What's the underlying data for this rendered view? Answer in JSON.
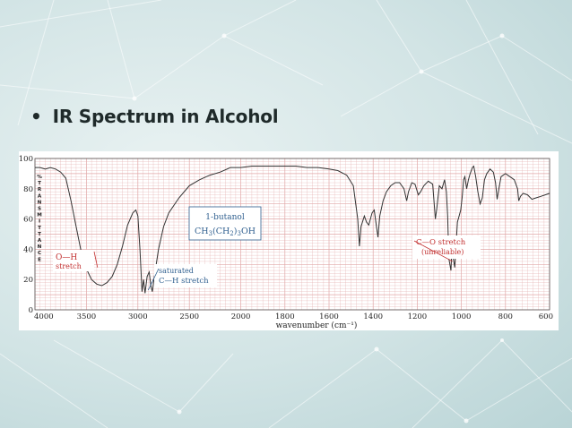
{
  "slide": {
    "bullet": "IR Spectrum in Alcohol"
  },
  "colors": {
    "background": "#cfe2e3",
    "network_lines": "#ffffff",
    "grid": "#e1a7a7",
    "trace": "#333333",
    "annotation": "#c23030",
    "label_box": "#2f5f8f"
  },
  "chart_data": {
    "type": "line",
    "title": "",
    "xlabel": "wavenumber (cm⁻¹)",
    "ylabel": "% TRANSMITTANCE",
    "ylim": [
      0,
      100
    ],
    "y_ticks": [
      "0",
      "20",
      "40",
      "60",
      "80",
      "100"
    ],
    "x_ticks": [
      "4000",
      "3500",
      "3000",
      "2500",
      "2000",
      "1800",
      "1600",
      "1400",
      "1200",
      "1000",
      "800",
      "600"
    ],
    "x_tick_values": [
      4000,
      3500,
      3000,
      2500,
      2000,
      1800,
      1600,
      1400,
      1200,
      1000,
      800,
      600
    ],
    "x_scale": "split: 2 cm-1 per unit above 2000, 1 cm-1 per unit below 2000",
    "grid": true,
    "compound": {
      "name": "1-butanol",
      "formula_main": "CH",
      "formula_parts": [
        "3",
        "(CH",
        "2",
        ")",
        "3",
        "OH"
      ]
    },
    "annotations": {
      "oh": {
        "line1": "O—H",
        "line2": "stretch",
        "x": 3340,
        "y": 16
      },
      "ch": {
        "line1": "saturated",
        "line2": "C—H stretch",
        "x": 2900,
        "y": 13
      },
      "co": {
        "line1": "C—O stretch",
        "line2": "(unreliable)",
        "x": 1040,
        "y": 32
      }
    },
    "series": [
      {
        "points": [
          [
            4000,
            94
          ],
          [
            3950,
            94
          ],
          [
            3900,
            93
          ],
          [
            3850,
            94
          ],
          [
            3800,
            93
          ],
          [
            3750,
            91
          ],
          [
            3700,
            87
          ],
          [
            3650,
            72
          ],
          [
            3600,
            55
          ],
          [
            3550,
            38
          ],
          [
            3500,
            27
          ],
          [
            3450,
            20
          ],
          [
            3400,
            17
          ],
          [
            3350,
            16
          ],
          [
            3300,
            18
          ],
          [
            3250,
            22
          ],
          [
            3200,
            30
          ],
          [
            3150,
            42
          ],
          [
            3100,
            56
          ],
          [
            3050,
            64
          ],
          [
            3020,
            66
          ],
          [
            3000,
            62
          ],
          [
            2980,
            40
          ],
          [
            2960,
            12
          ],
          [
            2945,
            20
          ],
          [
            2930,
            11
          ],
          [
            2910,
            22
          ],
          [
            2890,
            25
          ],
          [
            2875,
            16
          ],
          [
            2860,
            12
          ],
          [
            2840,
            22
          ],
          [
            2800,
            40
          ],
          [
            2750,
            55
          ],
          [
            2700,
            64
          ],
          [
            2600,
            74
          ],
          [
            2500,
            82
          ],
          [
            2400,
            86
          ],
          [
            2300,
            89
          ],
          [
            2200,
            91
          ],
          [
            2100,
            94
          ],
          [
            2000,
            94
          ],
          [
            1950,
            95
          ],
          [
            1900,
            95
          ],
          [
            1850,
            95
          ],
          [
            1800,
            95
          ],
          [
            1750,
            95
          ],
          [
            1700,
            94
          ],
          [
            1650,
            94
          ],
          [
            1600,
            93
          ],
          [
            1560,
            92
          ],
          [
            1520,
            89
          ],
          [
            1490,
            82
          ],
          [
            1470,
            60
          ],
          [
            1462,
            42
          ],
          [
            1455,
            55
          ],
          [
            1440,
            62
          ],
          [
            1430,
            58
          ],
          [
            1420,
            56
          ],
          [
            1405,
            64
          ],
          [
            1395,
            66
          ],
          [
            1385,
            55
          ],
          [
            1378,
            48
          ],
          [
            1370,
            62
          ],
          [
            1355,
            72
          ],
          [
            1340,
            78
          ],
          [
            1320,
            82
          ],
          [
            1300,
            84
          ],
          [
            1280,
            84
          ],
          [
            1260,
            80
          ],
          [
            1248,
            72
          ],
          [
            1240,
            78
          ],
          [
            1225,
            84
          ],
          [
            1210,
            83
          ],
          [
            1195,
            76
          ],
          [
            1185,
            78
          ],
          [
            1170,
            82
          ],
          [
            1150,
            85
          ],
          [
            1130,
            83
          ],
          [
            1118,
            60
          ],
          [
            1112,
            66
          ],
          [
            1100,
            82
          ],
          [
            1088,
            80
          ],
          [
            1076,
            86
          ],
          [
            1068,
            78
          ],
          [
            1062,
            62
          ],
          [
            1057,
            34
          ],
          [
            1052,
            30
          ],
          [
            1047,
            26
          ],
          [
            1042,
            44
          ],
          [
            1037,
            34
          ],
          [
            1030,
            28
          ],
          [
            1025,
            40
          ],
          [
            1018,
            58
          ],
          [
            1010,
            62
          ],
          [
            1003,
            66
          ],
          [
            996,
            75
          ],
          [
            990,
            86
          ],
          [
            984,
            88
          ],
          [
            976,
            80
          ],
          [
            968,
            86
          ],
          [
            960,
            90
          ],
          [
            950,
            94
          ],
          [
            944,
            95
          ],
          [
            935,
            88
          ],
          [
            925,
            78
          ],
          [
            915,
            70
          ],
          [
            905,
            74
          ],
          [
            895,
            86
          ],
          [
            885,
            90
          ],
          [
            870,
            93
          ],
          [
            855,
            91
          ],
          [
            845,
            84
          ],
          [
            838,
            73
          ],
          [
            830,
            80
          ],
          [
            820,
            88
          ],
          [
            800,
            90
          ],
          [
            780,
            88
          ],
          [
            760,
            86
          ],
          [
            745,
            80
          ],
          [
            740,
            72
          ],
          [
            732,
            75
          ],
          [
            720,
            77
          ],
          [
            700,
            76
          ],
          [
            680,
            73
          ],
          [
            660,
            74
          ],
          [
            640,
            75
          ],
          [
            620,
            76
          ],
          [
            600,
            77
          ]
        ]
      }
    ]
  }
}
